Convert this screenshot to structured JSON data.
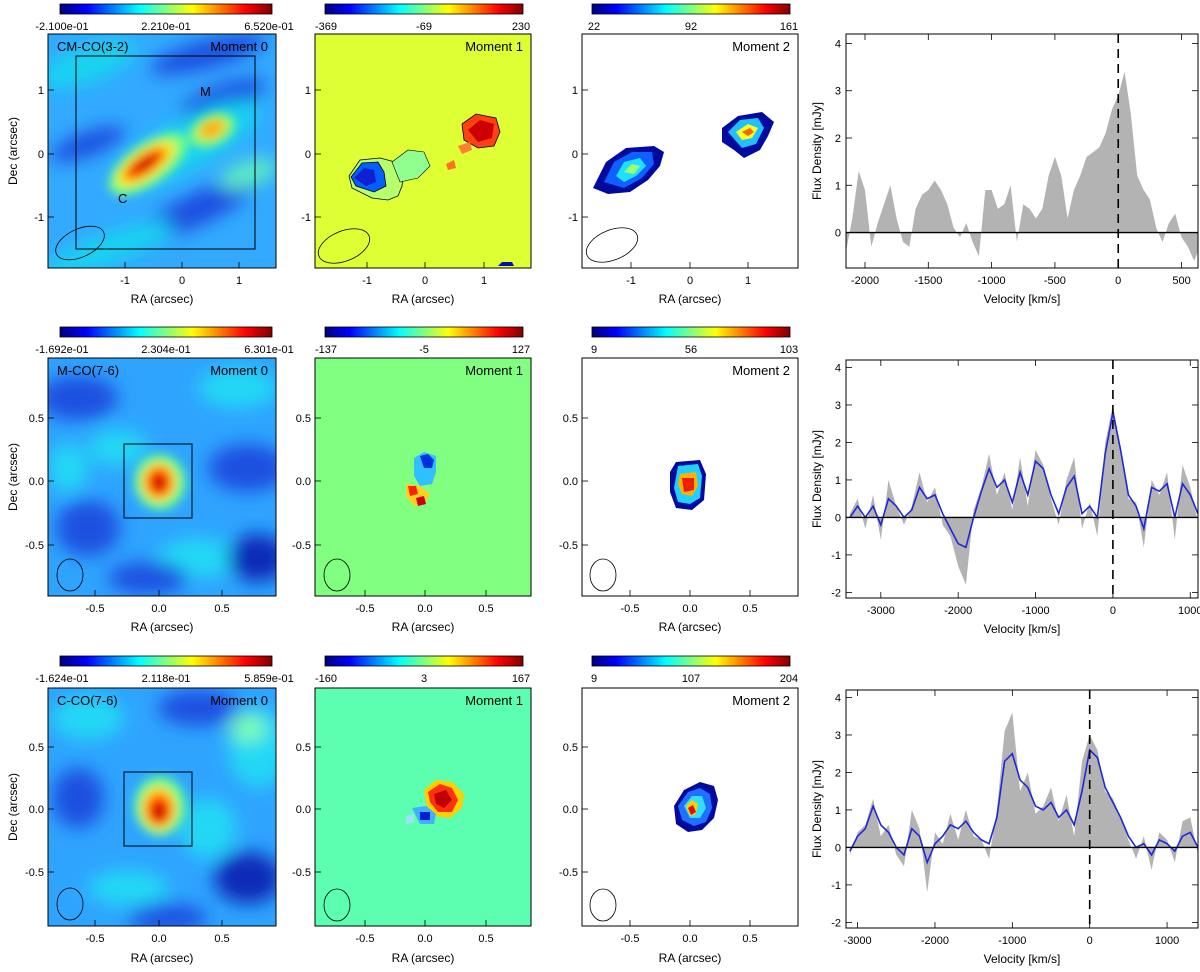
{
  "colormap": [
    "#00007f",
    "#0000ff",
    "#0080ff",
    "#00ffff",
    "#80ff80",
    "#ffff00",
    "#ff8000",
    "#ff0000",
    "#800000"
  ],
  "colors": {
    "spectrum_fill": "#b3b3b3",
    "smoothed_line": "#1f28d8",
    "axis": "#000000"
  },
  "rows": [
    {
      "mom0": {
        "cbar": [
          "-2.100e-01",
          "2.210e-01",
          "6.520e-01"
        ],
        "label": "CM-CO(3-2)",
        "title": "Moment 0",
        "ticks": [
          "-1",
          "0",
          "1"
        ],
        "xlabel": "RA (arcsec)",
        "ylabel": "Dec (arcsec)",
        "markers": [
          "M",
          "C"
        ]
      },
      "mom1": {
        "cbar": [
          "-369",
          "-69",
          "230"
        ],
        "title": "Moment 1",
        "ticks": [
          "-1",
          "0",
          "1"
        ],
        "xlabel": "RA (arcsec)"
      },
      "mom2": {
        "cbar": [
          "22",
          "92",
          "161"
        ],
        "title": "Moment 2",
        "ticks": [
          "-1",
          "0",
          "1"
        ],
        "xlabel": "RA (arcsec)"
      }
    },
    {
      "mom0": {
        "cbar": [
          "-1.692e-01",
          "2.304e-01",
          "6.301e-01"
        ],
        "label": "M-CO(7-6)",
        "title": "Moment 0",
        "ticks": [
          "-0.5",
          "0.0",
          "0.5"
        ],
        "xlabel": "RA (arcsec)",
        "ylabel": "Dec (arcsec)"
      },
      "mom1": {
        "cbar": [
          "-137",
          "-5",
          "127"
        ],
        "title": "Moment 1",
        "ticks": [
          "-0.5",
          "0.0",
          "0.5"
        ],
        "xlabel": "RA (arcsec)"
      },
      "mom2": {
        "cbar": [
          "9",
          "56",
          "103"
        ],
        "title": "Moment 2",
        "ticks": [
          "-0.5",
          "0.0",
          "0.5"
        ],
        "xlabel": "RA (arcsec)"
      }
    },
    {
      "mom0": {
        "cbar": [
          "-1.624e-01",
          "2.118e-01",
          "5.859e-01"
        ],
        "label": "C-CO(7-6)",
        "title": "Moment 0",
        "ticks": [
          "-0.5",
          "0.0",
          "0.5"
        ],
        "xlabel": "RA (arcsec)",
        "ylabel": "Dec (arcsec)"
      },
      "mom1": {
        "cbar": [
          "-160",
          "3",
          "167"
        ],
        "title": "Moment 1",
        "ticks": [
          "-0.5",
          "0.0",
          "0.5"
        ],
        "xlabel": "RA (arcsec)"
      },
      "mom2": {
        "cbar": [
          "9",
          "107",
          "204"
        ],
        "title": "Moment 2",
        "ticks": [
          "-0.5",
          "0.0",
          "0.5"
        ],
        "xlabel": "RA (arcsec)"
      }
    }
  ],
  "chart_data": [
    {
      "type": "area",
      "xlabel": "Velocity [km/s]",
      "ylabel": "Flux Density [mJy]",
      "xlim": [
        -2150,
        630
      ],
      "ylim": [
        -0.75,
        4.2
      ],
      "xticks": [
        -2000,
        -1500,
        -1000,
        -500,
        0,
        500
      ],
      "yticks": [
        0,
        1,
        2,
        3,
        4
      ],
      "vline": 0,
      "hline": 0,
      "series": [
        {
          "x": [
            -2150,
            -2100,
            -2050,
            -2000,
            -1950,
            -1900,
            -1850,
            -1800,
            -1750,
            -1700,
            -1650,
            -1600,
            -1550,
            -1500,
            -1450,
            -1400,
            -1350,
            -1300,
            -1250,
            -1200,
            -1150,
            -1100,
            -1050,
            -1000,
            -950,
            -900,
            -850,
            -800,
            -750,
            -700,
            -650,
            -600,
            -550,
            -500,
            -450,
            -400,
            -350,
            -300,
            -250,
            -200,
            -150,
            -100,
            -50,
            0,
            50,
            100,
            150,
            200,
            250,
            300,
            350,
            400,
            450,
            500,
            550,
            600,
            630
          ],
          "values": [
            -0.4,
            0.3,
            1.3,
            0.9,
            -0.3,
            0.2,
            0.6,
            1.0,
            0.3,
            -0.2,
            -0.3,
            0.5,
            0.8,
            0.9,
            1.1,
            0.9,
            0.6,
            0.1,
            -0.1,
            0.2,
            -0.2,
            -0.5,
            0.9,
            0.9,
            0.5,
            0.6,
            1.0,
            -0.2,
            0.6,
            0.5,
            0.3,
            0.5,
            1.2,
            1.6,
            1.2,
            0.3,
            0.9,
            1.2,
            1.6,
            1.7,
            1.8,
            2.1,
            2.6,
            2.9,
            3.4,
            2.5,
            1.2,
            0.9,
            0.7,
            0.1,
            -0.2,
            0.2,
            0.4,
            -0.1,
            -0.3,
            -0.6,
            -0.4
          ]
        }
      ]
    },
    {
      "type": "area",
      "xlabel": "Velocity [km/s]",
      "ylabel": "Flux Density [mJy]",
      "xlim": [
        -3450,
        1100
      ],
      "ylim": [
        -2.15,
        4.2
      ],
      "xticks": [
        -3000,
        -2000,
        -1000,
        0,
        1000
      ],
      "yticks": [
        -2,
        -1,
        0,
        1,
        2,
        3,
        4
      ],
      "vline": 0,
      "hline": 0,
      "series": [
        {
          "name": "spectrum",
          "x": [
            -3400,
            -3300,
            -3200,
            -3100,
            -3000,
            -2900,
            -2800,
            -2700,
            -2600,
            -2500,
            -2400,
            -2300,
            -2200,
            -2100,
            -2000,
            -1900,
            -1800,
            -1700,
            -1600,
            -1500,
            -1400,
            -1300,
            -1200,
            -1100,
            -1000,
            -900,
            -800,
            -700,
            -600,
            -500,
            -400,
            -300,
            -200,
            -100,
            0,
            100,
            200,
            300,
            400,
            500,
            600,
            700,
            800,
            900,
            1000,
            1100
          ],
          "values": [
            0.1,
            0.5,
            -0.3,
            0.6,
            -0.6,
            1.0,
            0.3,
            -0.2,
            0.3,
            1.2,
            0.4,
            0.8,
            -0.2,
            -0.5,
            -1.3,
            -1.8,
            0.2,
            0.8,
            1.7,
            0.6,
            1.2,
            0.2,
            1.6,
            0.3,
            1.8,
            1.4,
            0.5,
            -0.2,
            1.0,
            1.6,
            -0.3,
            0.4,
            -0.5,
            2.0,
            3.0,
            1.9,
            0.5,
            0.4,
            -0.8,
            1.0,
            0.6,
            1.2,
            -0.6,
            1.4,
            0.8,
            -0.1
          ]
        },
        {
          "name": "smoothed",
          "x": [
            -3400,
            -3300,
            -3200,
            -3100,
            -3000,
            -2900,
            -2800,
            -2700,
            -2600,
            -2500,
            -2400,
            -2300,
            -2200,
            -2100,
            -2000,
            -1900,
            -1800,
            -1700,
            -1600,
            -1500,
            -1400,
            -1300,
            -1200,
            -1100,
            -1000,
            -900,
            -800,
            -700,
            -600,
            -500,
            -400,
            -300,
            -200,
            -100,
            0,
            100,
            200,
            300,
            400,
            500,
            600,
            700,
            800,
            900,
            1000,
            1100
          ],
          "values": [
            0.0,
            0.3,
            0.0,
            0.3,
            -0.2,
            0.5,
            0.3,
            0.0,
            0.2,
            0.8,
            0.5,
            0.6,
            0.1,
            -0.3,
            -0.7,
            -0.8,
            0.0,
            0.7,
            1.3,
            0.8,
            1.0,
            0.4,
            1.2,
            0.6,
            1.5,
            1.3,
            0.6,
            0.1,
            0.8,
            1.1,
            0.1,
            0.3,
            0.0,
            1.7,
            2.8,
            1.8,
            0.6,
            0.3,
            -0.3,
            0.8,
            0.7,
            0.9,
            0.0,
            0.9,
            0.6,
            0.1
          ]
        }
      ]
    },
    {
      "type": "area",
      "xlabel": "Velocity [km/s]",
      "ylabel": "Flux Density [mJy]",
      "xlim": [
        -3150,
        1400
      ],
      "ylim": [
        -2.15,
        4.2
      ],
      "xticks": [
        -3000,
        -2000,
        -1000,
        0,
        1000
      ],
      "yticks": [
        -2,
        -1,
        0,
        1,
        2,
        3,
        4
      ],
      "vline": 0,
      "hline": 0,
      "series": [
        {
          "name": "spectrum",
          "x": [
            -3100,
            -3000,
            -2900,
            -2800,
            -2700,
            -2600,
            -2500,
            -2400,
            -2300,
            -2200,
            -2100,
            -2000,
            -1900,
            -1800,
            -1700,
            -1600,
            -1500,
            -1400,
            -1300,
            -1200,
            -1100,
            -1000,
            -900,
            -800,
            -700,
            -600,
            -500,
            -400,
            -300,
            -200,
            -100,
            0,
            100,
            200,
            300,
            400,
            500,
            600,
            700,
            800,
            900,
            1000,
            1100,
            1200,
            1300,
            1400
          ],
          "values": [
            -0.2,
            0.4,
            0.6,
            1.3,
            0.3,
            0.6,
            -0.2,
            -0.5,
            1.0,
            0.5,
            -1.2,
            0.4,
            0.1,
            0.9,
            0.2,
            1.0,
            0.3,
            0.2,
            -0.3,
            1.0,
            3.1,
            3.6,
            1.5,
            2.0,
            0.9,
            1.1,
            1.6,
            0.7,
            1.4,
            0.3,
            2.3,
            3.0,
            2.6,
            1.5,
            1.3,
            0.8,
            0.2,
            -0.3,
            0.3,
            -0.6,
            0.4,
            0.2,
            -0.4,
            0.7,
            0.8,
            -0.2
          ]
        },
        {
          "name": "smoothed",
          "x": [
            -3100,
            -3000,
            -2900,
            -2800,
            -2700,
            -2600,
            -2500,
            -2400,
            -2300,
            -2200,
            -2100,
            -2000,
            -1900,
            -1800,
            -1700,
            -1600,
            -1500,
            -1400,
            -1300,
            -1200,
            -1100,
            -1000,
            -900,
            -800,
            -700,
            -600,
            -500,
            -400,
            -300,
            -200,
            -100,
            0,
            100,
            200,
            300,
            400,
            500,
            600,
            700,
            800,
            900,
            1000,
            1100,
            1200,
            1300,
            1400
          ],
          "values": [
            -0.1,
            0.3,
            0.5,
            1.1,
            0.6,
            0.4,
            0.0,
            -0.2,
            0.5,
            0.3,
            -0.4,
            0.1,
            0.3,
            0.6,
            0.5,
            0.7,
            0.4,
            0.2,
            0.1,
            0.8,
            2.3,
            2.5,
            1.8,
            1.6,
            1.1,
            1.0,
            1.2,
            0.8,
            1.0,
            0.6,
            1.5,
            2.6,
            2.4,
            1.6,
            1.2,
            0.8,
            0.3,
            0.0,
            0.1,
            -0.2,
            0.2,
            0.1,
            -0.1,
            0.3,
            0.4,
            0.0
          ]
        }
      ]
    }
  ]
}
